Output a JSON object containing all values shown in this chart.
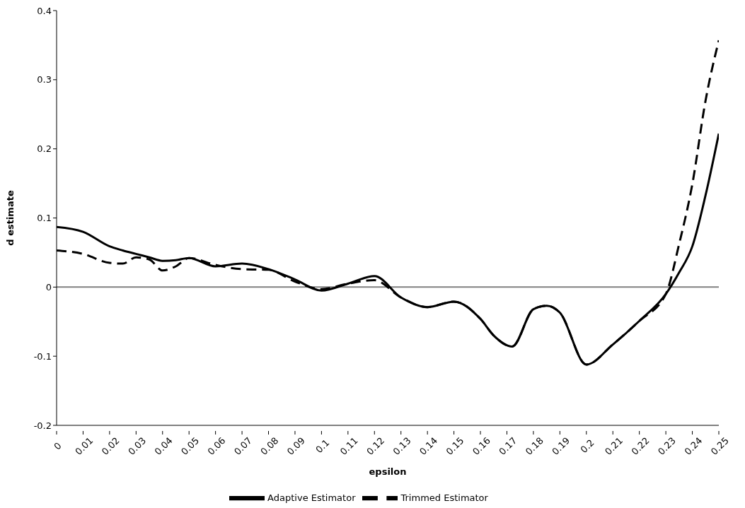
{
  "chart_data": {
    "type": "line",
    "xlabel": "epsilon",
    "ylabel": "d estimate",
    "x": [
      0,
      0.01,
      0.02,
      0.025,
      0.03,
      0.035,
      0.04,
      0.045,
      0.05,
      0.06,
      0.07,
      0.08,
      0.09,
      0.1,
      0.11,
      0.12,
      0.13,
      0.14,
      0.15,
      0.16,
      0.165,
      0.172,
      0.18,
      0.185,
      0.19,
      0.2,
      0.21,
      0.22,
      0.23,
      0.235,
      0.24,
      0.245,
      0.25
    ],
    "series": [
      {
        "name": "Adaptive Estimator",
        "color": "#000000",
        "line_style": "solid",
        "values": [
          0.087,
          0.08,
          0.059,
          0.053,
          0.048,
          0.043,
          0.038,
          0.039,
          0.042,
          0.03,
          0.034,
          0.026,
          0.011,
          -0.005,
          0.005,
          0.016,
          -0.015,
          -0.029,
          -0.021,
          -0.046,
          -0.07,
          -0.086,
          -0.032,
          -0.027,
          -0.037,
          -0.112,
          -0.083,
          -0.049,
          -0.01,
          0.021,
          0.059,
          0.133,
          0.222
        ]
      },
      {
        "name": "Trimmed Estimator",
        "color": "#000000",
        "line_style": "dashed",
        "values": [
          0.053,
          0.048,
          0.035,
          0.034,
          0.043,
          0.04,
          0.024,
          0.03,
          0.042,
          0.032,
          0.026,
          0.025,
          0.008,
          -0.003,
          0.005,
          0.01,
          -0.015,
          -0.029,
          -0.021,
          -0.046,
          -0.07,
          -0.086,
          -0.032,
          -0.027,
          -0.037,
          -0.112,
          -0.083,
          -0.049,
          -0.01,
          0.062,
          0.149,
          0.27,
          0.357
        ]
      }
    ],
    "xlim": [
      0,
      0.25
    ],
    "xticks": [
      0,
      0.01,
      0.02,
      0.03,
      0.04,
      0.05,
      0.06,
      0.07,
      0.08,
      0.09,
      0.1,
      0.11,
      0.12,
      0.13,
      0.14,
      0.15,
      0.16,
      0.17,
      0.18,
      0.19,
      0.2,
      0.21,
      0.22,
      0.23,
      0.24,
      0.25
    ],
    "ylim": [
      -0.2,
      0.4
    ],
    "yticks": [
      -0.2,
      -0.1,
      0,
      0.1,
      0.2,
      0.3,
      0.4
    ],
    "ref_lines": [
      {
        "axis": "y",
        "value": 0,
        "color": "#808080"
      }
    ],
    "grid": false,
    "legend": "bottom",
    "marker": "none"
  }
}
